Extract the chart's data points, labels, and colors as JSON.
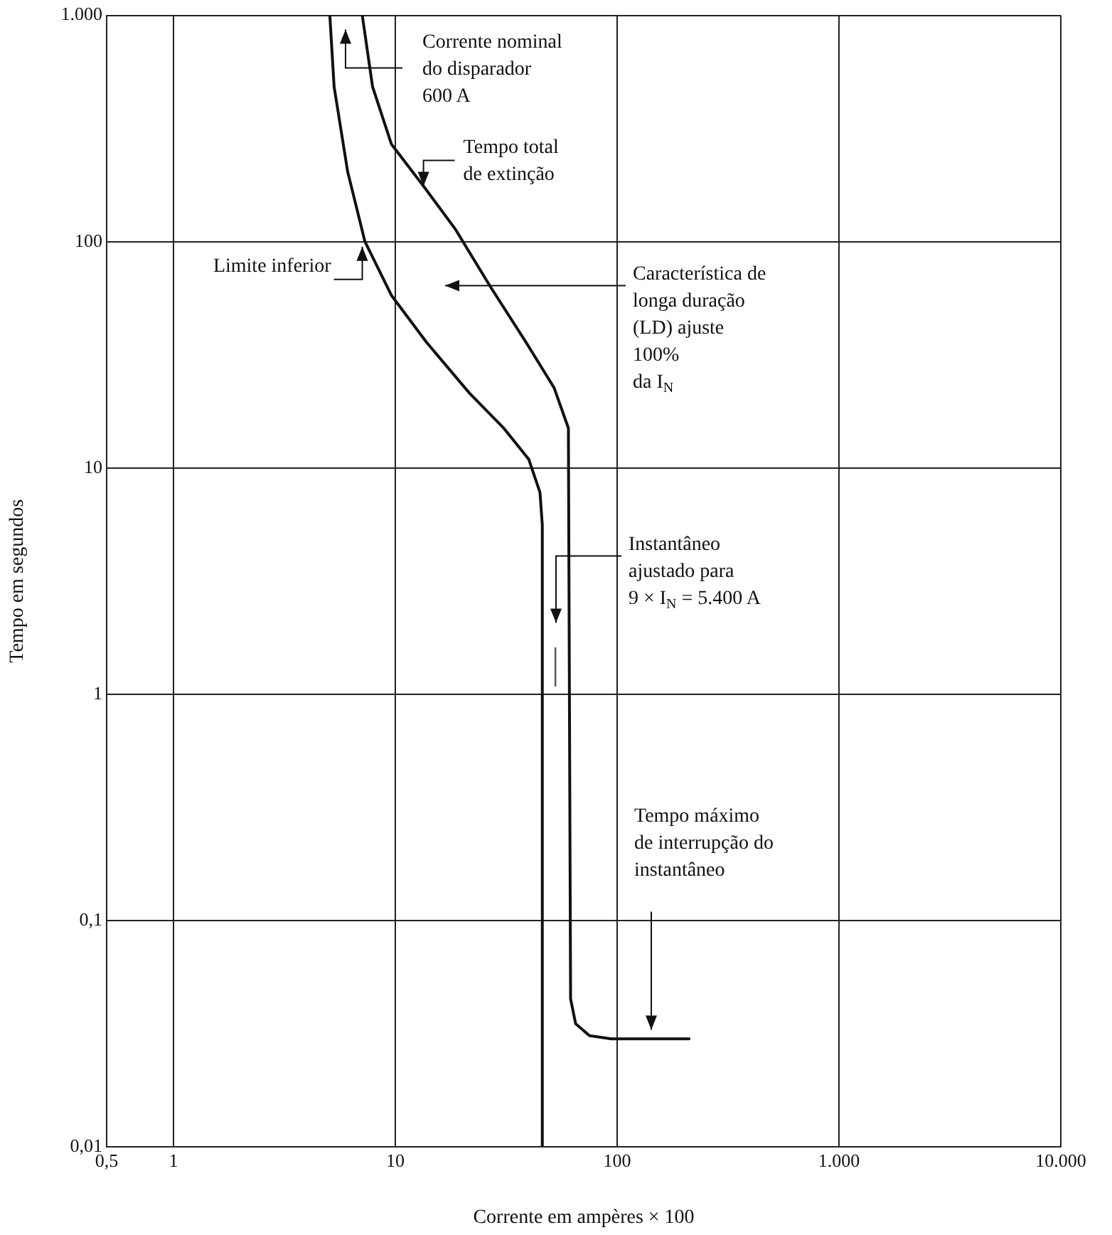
{
  "chart_data": {
    "type": "line",
    "xlabel": "Corrente em ampères × 100",
    "ylabel": "Tempo em segundos",
    "log": "xy",
    "grid": true,
    "legend": false,
    "marker": "none",
    "line_style": "solid",
    "xlim": [
      0.5,
      10000
    ],
    "ylim": [
      0.01,
      1000
    ],
    "xticks": [
      {
        "value": 0.5,
        "label": "0,5"
      },
      1,
      10,
      100,
      {
        "value": 1000,
        "label": "1.000"
      },
      {
        "value": 10000,
        "label": "10.000"
      }
    ],
    "yticks": [
      {
        "value": 0.01,
        "label": "0,01"
      },
      {
        "value": 0.1,
        "label": "0,1"
      },
      1,
      10,
      100,
      {
        "value": 1000,
        "label": "1.000"
      }
    ],
    "series": [
      {
        "color": "#111111",
        "x": [
          5.07,
          5.3,
          6.1,
          7.3,
          9.6,
          13.8,
          21.6,
          31,
          40,
          44.9,
          46,
          46
        ],
        "values": [
          1000,
          484,
          204,
          100,
          58,
          36,
          21.4,
          14.9,
          10.9,
          7.8,
          5.6,
          0.01
        ]
      },
      {
        "color": "#111111",
        "x": [
          7.1,
          7.9,
          9.6,
          13.4,
          18.6,
          26.9,
          38.8,
          52,
          60.3,
          61.7,
          65,
          75,
          94,
          211
        ],
        "values": [
          1000,
          484,
          270,
          176,
          114,
          63,
          36,
          22.6,
          15,
          0.045,
          0.035,
          0.031,
          0.03,
          0.03
        ]
      },
      {
        "color": "#555555",
        "x": [
          52.7,
          52.7
        ],
        "values": [
          1.6,
          1.09
        ]
      }
    ],
    "annotations": [
      "Corrente nominal\ndo disparador\n600 A",
      {
        "text": "Tempo total\nde extinção",
        "x": 13.4,
        "y": 176
      },
      {
        "text": "Limite inferior",
        "x": 7.1,
        "y": 95
      },
      "Característica de\nlonga duração\n(LD) ajuste\n100%\nda I$_{N}$",
      "Instantâneo\najustado para\n9 × I$_{N}$ = 5.400 A",
      "Tempo máximo\nde interrupção do\ninstantâneo"
    ]
  }
}
